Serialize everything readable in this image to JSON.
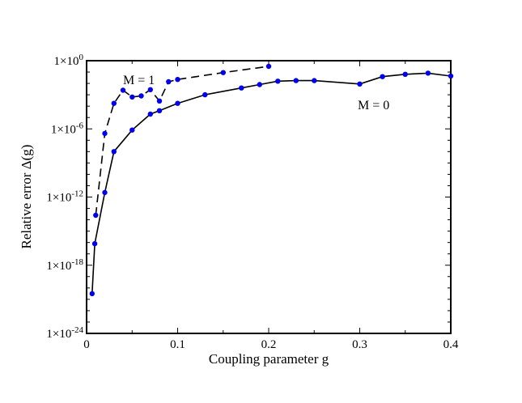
{
  "chart_data": {
    "type": "line",
    "xlabel": "Coupling parameter g",
    "ylabel": "Relative error Δ(g)",
    "xlim": [
      0,
      0.4
    ],
    "ylim_log10": [
      -24,
      0
    ],
    "y_scale": "log",
    "x_ticks": [
      {
        "value": 0,
        "label": "0"
      },
      {
        "value": 0.1,
        "label": "0.1"
      },
      {
        "value": 0.2,
        "label": "0.2"
      },
      {
        "value": 0.3,
        "label": "0.3"
      },
      {
        "value": 0.4,
        "label": "0.4"
      }
    ],
    "y_ticks": [
      {
        "exp": 0,
        "base": "1×10",
        "sup": "0"
      },
      {
        "exp": -6,
        "base": "1×10",
        "sup": "-6"
      },
      {
        "exp": -12,
        "base": "1×10",
        "sup": "-12"
      },
      {
        "exp": -18,
        "base": "1×10",
        "sup": "-18"
      },
      {
        "exp": -24,
        "base": "1×10",
        "sup": "-24"
      }
    ],
    "series": [
      {
        "name": "M = 0",
        "line_style": "solid",
        "color": "#000000",
        "marker_color": "#0000ee",
        "x": [
          0.006,
          0.009,
          0.02,
          0.03,
          0.05,
          0.07,
          0.08,
          0.1,
          0.13,
          0.17,
          0.19,
          0.21,
          0.23,
          0.25,
          0.3,
          0.325,
          0.35,
          0.375,
          0.4
        ],
        "log10_y": [
          -20.5,
          -16.1,
          -11.6,
          -8.0,
          -6.1,
          -4.7,
          -4.4,
          -3.75,
          -3.0,
          -2.4,
          -2.1,
          -1.8,
          -1.75,
          -1.75,
          -2.05,
          -1.4,
          -1.2,
          -1.1,
          -1.35
        ]
      },
      {
        "name": "M = 1",
        "line_style": "dashed",
        "color": "#000000",
        "marker_color": "#0000ee",
        "x": [
          0.01,
          0.02,
          0.03,
          0.04,
          0.05,
          0.06,
          0.07,
          0.08,
          0.09,
          0.1,
          0.15,
          0.2
        ],
        "log10_y": [
          -13.6,
          -6.4,
          -3.75,
          -2.6,
          -3.2,
          -3.1,
          -2.55,
          -3.55,
          -1.85,
          -1.65,
          -1.05,
          -0.5
        ]
      }
    ]
  }
}
